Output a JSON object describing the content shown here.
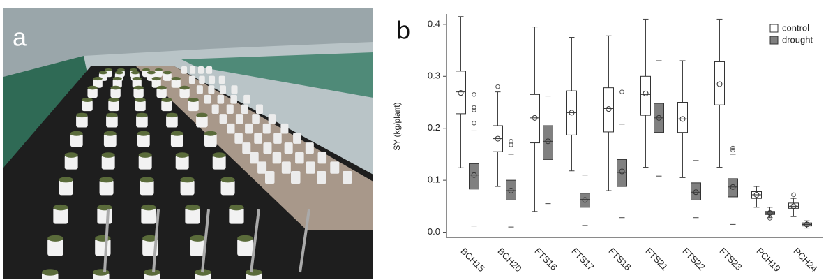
{
  "panels": {
    "photo_label": "a",
    "chart_label": "b"
  },
  "chart_data": {
    "type": "box",
    "ylabel": "SY (kg/plant)",
    "categories": [
      "BCH15",
      "BCH20",
      "FTS16",
      "FTS17",
      "FTS18",
      "FTS21",
      "FTS22",
      "FTS23",
      "PCH19",
      "PCH24"
    ],
    "ylim": [
      -0.01,
      0.42
    ],
    "yticks": [
      {
        "value": 0,
        "label": "0.0"
      },
      0.1,
      0.2,
      0.3,
      0.4
    ],
    "legend": "top-right",
    "series": [
      {
        "name": "control",
        "color": "#ffffff",
        "whislo": [
          0.124,
          0.088,
          0.04,
          0.118,
          0.08,
          0.125,
          0.105,
          0.125,
          0.048,
          0.03
        ],
        "q1": [
          0.228,
          0.155,
          0.172,
          0.187,
          0.193,
          0.225,
          0.192,
          0.245,
          0.065,
          0.046
        ],
        "med": [
          0.27,
          0.18,
          0.22,
          0.23,
          0.238,
          0.265,
          0.218,
          0.285,
          0.072,
          0.05
        ],
        "q3": [
          0.31,
          0.205,
          0.265,
          0.272,
          0.278,
          0.3,
          0.25,
          0.328,
          0.078,
          0.056
        ],
        "whishi": [
          0.415,
          0.27,
          0.395,
          0.375,
          0.378,
          0.41,
          0.33,
          0.41,
          0.088,
          0.065
        ],
        "mean": [
          0.268,
          0.18,
          0.22,
          0.23,
          0.237,
          0.267,
          0.218,
          0.285,
          0.072,
          0.05
        ],
        "outliers": [
          [],
          [
            0.28
          ],
          [],
          [],
          [],
          [],
          [],
          [],
          [],
          [
            0.072
          ]
        ]
      },
      {
        "name": "drought",
        "color": "#808080",
        "whislo": [
          0.012,
          0.01,
          0.055,
          0.013,
          0.028,
          0.108,
          0.028,
          0.015,
          0.028,
          0.008
        ],
        "q1": [
          0.083,
          0.062,
          0.14,
          0.048,
          0.088,
          0.192,
          0.062,
          0.068,
          0.034,
          0.012
        ],
        "med": [
          0.11,
          0.08,
          0.175,
          0.063,
          0.115,
          0.22,
          0.077,
          0.087,
          0.037,
          0.015
        ],
        "q3": [
          0.132,
          0.1,
          0.205,
          0.075,
          0.14,
          0.248,
          0.095,
          0.103,
          0.04,
          0.018
        ],
        "whishi": [
          0.195,
          0.15,
          0.262,
          0.11,
          0.208,
          0.33,
          0.138,
          0.15,
          0.048,
          0.022
        ],
        "mean": [
          0.11,
          0.08,
          0.175,
          0.062,
          0.117,
          0.22,
          0.077,
          0.087,
          0.037,
          0.015
        ],
        "outliers": [
          [
            0.265,
            0.24,
            0.235,
            0.21
          ],
          [
            0.175,
            0.168
          ],
          [],
          [],
          [
            0.27
          ],
          [],
          [],
          [
            0.162,
            0.158
          ],
          [
            0.027
          ],
          []
        ]
      }
    ]
  }
}
